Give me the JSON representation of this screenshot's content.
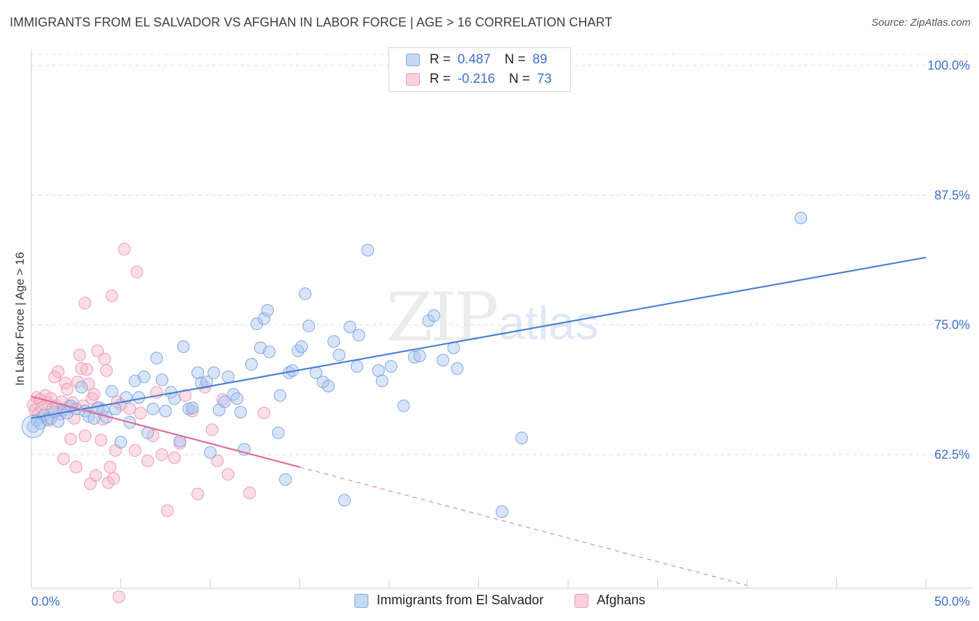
{
  "header": {
    "title": "IMMIGRANTS FROM EL SALVADOR VS AFGHAN IN LABOR FORCE | AGE > 16 CORRELATION CHART",
    "source": "Source: ZipAtlas.com"
  },
  "watermark": {
    "zip": "ZIP",
    "atlas": "atlas"
  },
  "legend_top": {
    "rows": [
      {
        "r_label": "R =",
        "r_value": "0.487",
        "n_label": "N =",
        "n_value": "89",
        "color": "#a9c6f0"
      },
      {
        "r_label": "R =",
        "r_value": "-0.216",
        "n_label": "N =",
        "n_value": "73",
        "color": "#f6b6c8"
      }
    ]
  },
  "legend_bottom": {
    "items": [
      {
        "label": "Immigrants from El Salvador",
        "color": "#a9c6f0"
      },
      {
        "label": "Afghans",
        "color": "#f6b6c8"
      }
    ]
  },
  "chart_data": {
    "type": "scatter",
    "title": "IMMIGRANTS FROM EL SALVADOR VS AFGHAN IN LABOR FORCE | AGE > 16 CORRELATION CHART",
    "ylabel": "In Labor Force | Age > 16",
    "xlim": [
      0,
      50
    ],
    "ylim": [
      50,
      102
    ],
    "x_tick_labels": [
      "0.0%",
      "50.0%"
    ],
    "y_ticks": [
      62.5,
      75.0,
      87.5,
      100.0
    ],
    "y_tick_labels": [
      "62.5%",
      "75.0%",
      "87.5%",
      "100.0%"
    ],
    "grid": true,
    "colors": {
      "blue": "#4a7fd4",
      "blue_fill": "#a9c6f0",
      "pink": "#e06a94",
      "pink_fill": "#f6b6c8",
      "tick_text": "#3d6fcf"
    },
    "series": [
      {
        "name": "Immigrants from El Salvador",
        "trend": {
          "x0": 0,
          "y0": 66.0,
          "x1": 50,
          "y1": 81.5,
          "dashed_from": null
        },
        "points": [
          [
            0.1,
            65.2
          ],
          [
            0.3,
            65.8
          ],
          [
            0.5,
            65.5
          ],
          [
            0.7,
            66.3
          ],
          [
            0.9,
            65.9
          ],
          [
            1.1,
            66.0
          ],
          [
            1.3,
            66.6
          ],
          [
            1.5,
            65.7
          ],
          [
            1.8,
            66.8
          ],
          [
            2.0,
            66.5
          ],
          [
            2.2,
            67.2
          ],
          [
            2.5,
            66.9
          ],
          [
            2.8,
            69.0
          ],
          [
            3.0,
            66.7
          ],
          [
            3.2,
            66.2
          ],
          [
            3.5,
            66.0
          ],
          [
            3.7,
            67.0
          ],
          [
            4.0,
            66.8
          ],
          [
            4.2,
            66.1
          ],
          [
            4.5,
            68.6
          ],
          [
            4.7,
            66.9
          ],
          [
            5.0,
            63.7
          ],
          [
            5.3,
            68.0
          ],
          [
            5.5,
            65.6
          ],
          [
            5.8,
            69.6
          ],
          [
            6.0,
            68.0
          ],
          [
            6.3,
            70.0
          ],
          [
            6.5,
            64.6
          ],
          [
            6.8,
            66.9
          ],
          [
            7.0,
            71.8
          ],
          [
            7.3,
            69.7
          ],
          [
            7.5,
            66.7
          ],
          [
            7.8,
            68.5
          ],
          [
            8.0,
            67.9
          ],
          [
            8.3,
            63.8
          ],
          [
            8.5,
            72.9
          ],
          [
            8.8,
            66.9
          ],
          [
            9.0,
            67.0
          ],
          [
            9.3,
            70.4
          ],
          [
            9.5,
            69.4
          ],
          [
            9.8,
            69.5
          ],
          [
            10.0,
            62.7
          ],
          [
            10.2,
            70.4
          ],
          [
            10.5,
            66.8
          ],
          [
            10.8,
            67.6
          ],
          [
            11.0,
            70.0
          ],
          [
            11.3,
            68.3
          ],
          [
            11.5,
            67.9
          ],
          [
            11.7,
            66.6
          ],
          [
            11.9,
            63.0
          ],
          [
            12.3,
            71.2
          ],
          [
            12.6,
            75.1
          ],
          [
            12.8,
            72.8
          ],
          [
            13.0,
            75.6
          ],
          [
            13.2,
            76.4
          ],
          [
            13.3,
            72.4
          ],
          [
            13.8,
            64.6
          ],
          [
            13.9,
            68.2
          ],
          [
            14.2,
            60.1
          ],
          [
            14.4,
            70.4
          ],
          [
            14.6,
            70.6
          ],
          [
            14.9,
            72.5
          ],
          [
            15.1,
            72.9
          ],
          [
            15.3,
            78.0
          ],
          [
            15.5,
            74.9
          ],
          [
            15.9,
            70.4
          ],
          [
            16.3,
            69.5
          ],
          [
            16.6,
            69.1
          ],
          [
            16.9,
            73.4
          ],
          [
            17.2,
            72.1
          ],
          [
            17.5,
            58.1
          ],
          [
            17.8,
            74.8
          ],
          [
            18.2,
            71.0
          ],
          [
            18.3,
            74.0
          ],
          [
            18.8,
            82.2
          ],
          [
            19.4,
            70.6
          ],
          [
            19.6,
            69.6
          ],
          [
            20.1,
            71.0
          ],
          [
            20.8,
            67.2
          ],
          [
            21.4,
            71.9
          ],
          [
            21.7,
            72.0
          ],
          [
            22.2,
            75.4
          ],
          [
            22.5,
            75.9
          ],
          [
            23.0,
            71.6
          ],
          [
            23.6,
            72.8
          ],
          [
            23.8,
            70.8
          ],
          [
            26.3,
            57.0
          ],
          [
            27.4,
            64.1
          ],
          [
            43.0,
            85.3
          ]
        ]
      },
      {
        "name": "Afghans",
        "trend": {
          "x0": 0,
          "y0": 68.1,
          "x1": 15,
          "y1": 61.3,
          "dashed_to_x": 40,
          "dashed_to_y": 49.9
        },
        "points": [
          [
            0.1,
            67.3
          ],
          [
            0.2,
            66.8
          ],
          [
            0.3,
            68.0
          ],
          [
            0.4,
            66.5
          ],
          [
            0.5,
            67.8
          ],
          [
            0.6,
            67.0
          ],
          [
            0.7,
            66.3
          ],
          [
            0.8,
            68.2
          ],
          [
            0.9,
            67.5
          ],
          [
            1.0,
            65.8
          ],
          [
            1.1,
            67.9
          ],
          [
            1.2,
            66.9
          ],
          [
            1.3,
            70.0
          ],
          [
            1.4,
            67.2
          ],
          [
            1.5,
            70.5
          ],
          [
            1.6,
            66.4
          ],
          [
            1.7,
            67.6
          ],
          [
            1.8,
            62.1
          ],
          [
            1.9,
            69.4
          ],
          [
            2.0,
            68.8
          ],
          [
            2.1,
            67.1
          ],
          [
            2.2,
            64.0
          ],
          [
            2.3,
            67.5
          ],
          [
            2.4,
            66.0
          ],
          [
            2.5,
            61.3
          ],
          [
            2.6,
            69.5
          ],
          [
            2.7,
            72.1
          ],
          [
            2.8,
            70.8
          ],
          [
            2.9,
            67.2
          ],
          [
            3.0,
            77.1
          ],
          [
            3.1,
            70.7
          ],
          [
            3.2,
            69.3
          ],
          [
            3.3,
            59.7
          ],
          [
            3.4,
            67.9
          ],
          [
            3.5,
            68.3
          ],
          [
            3.6,
            60.5
          ],
          [
            3.7,
            72.5
          ],
          [
            3.8,
            67.0
          ],
          [
            3.9,
            63.9
          ],
          [
            4.0,
            65.9
          ],
          [
            4.1,
            71.7
          ],
          [
            4.2,
            70.6
          ],
          [
            4.3,
            59.8
          ],
          [
            4.4,
            61.3
          ],
          [
            4.5,
            77.8
          ],
          [
            4.6,
            60.2
          ],
          [
            4.7,
            62.9
          ],
          [
            4.8,
            67.6
          ],
          [
            5.0,
            67.3
          ],
          [
            5.2,
            82.3
          ],
          [
            5.5,
            66.9
          ],
          [
            5.8,
            62.9
          ],
          [
            5.9,
            80.1
          ],
          [
            6.1,
            66.5
          ],
          [
            6.5,
            61.9
          ],
          [
            6.8,
            64.3
          ],
          [
            7.0,
            68.5
          ],
          [
            7.3,
            62.5
          ],
          [
            7.6,
            57.1
          ],
          [
            8.0,
            62.2
          ],
          [
            8.3,
            63.6
          ],
          [
            8.6,
            68.2
          ],
          [
            9.0,
            66.7
          ],
          [
            9.3,
            58.7
          ],
          [
            9.7,
            69.0
          ],
          [
            10.1,
            64.9
          ],
          [
            10.4,
            61.9
          ],
          [
            10.7,
            67.8
          ],
          [
            11.0,
            60.6
          ],
          [
            12.2,
            58.8
          ],
          [
            13.0,
            66.5
          ],
          [
            4.9,
            48.8
          ],
          [
            3.0,
            64.3
          ]
        ]
      }
    ]
  }
}
